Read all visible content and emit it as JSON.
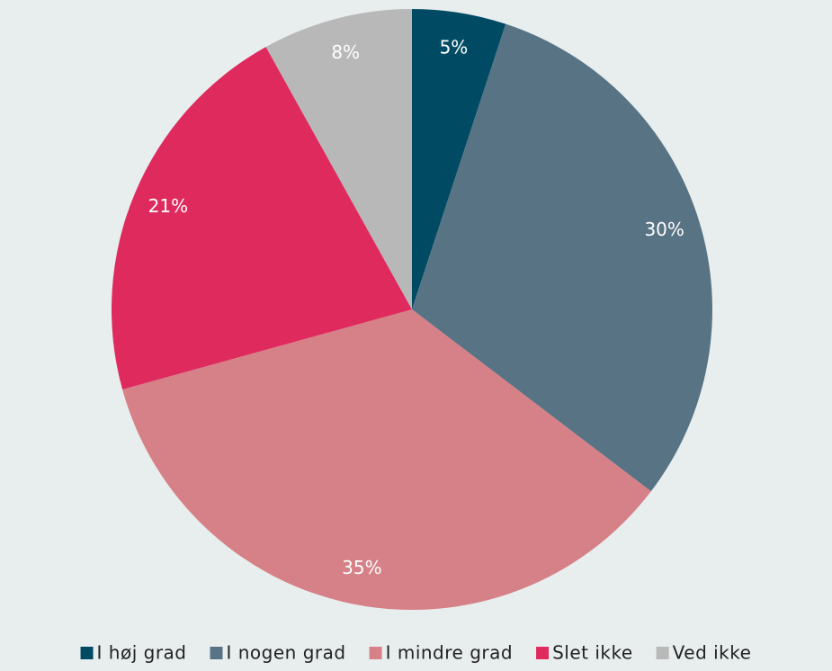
{
  "chart_data": {
    "type": "pie",
    "categories": [
      "I høj grad",
      "I nogen grad",
      "I mindre grad",
      "Slet ikke",
      "Ved ikke"
    ],
    "values": [
      5,
      30,
      35,
      21,
      8
    ],
    "value_labels": [
      "5%",
      "30%",
      "35%",
      "21%",
      "8%"
    ],
    "colors": [
      "#004b63",
      "#587384",
      "#d68087",
      "#df2a5e",
      "#b8b8b8"
    ],
    "legend": "bottom"
  }
}
